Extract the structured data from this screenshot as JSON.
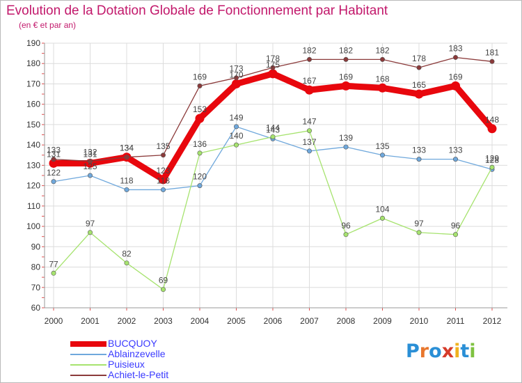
{
  "title": "Evolution de la Dotation Globale de Fonctionnement par Habitant",
  "subtitle": "(en € et par an)",
  "logo": {
    "text": "Proxiti",
    "letters": [
      "P",
      "r",
      "o",
      "x",
      "i",
      "t",
      "i"
    ],
    "colors": [
      "#2a8fd6",
      "#e8772e",
      "#2a8fd6",
      "#d63b2a",
      "#f0b21e",
      "#2a8fd6",
      "#7fc241"
    ]
  },
  "chart_data": {
    "type": "line",
    "title": "Evolution de la Dotation Globale de Fonctionnement par Habitant",
    "subtitle": "(en € et par an)",
    "xlabel": "",
    "ylabel": "",
    "x": [
      "2000",
      "2001",
      "2002",
      "2003",
      "2004",
      "2005",
      "2006",
      "2007",
      "2008",
      "2009",
      "2010",
      "2011",
      "2012"
    ],
    "yticks": [
      60,
      70,
      80,
      90,
      100,
      110,
      120,
      130,
      140,
      150,
      160,
      170,
      180,
      190
    ],
    "ylim": [
      60,
      190
    ],
    "grid": true,
    "legend_position": "bottom-left",
    "series": [
      {
        "name": "BUCQUOY",
        "color": "#e8070d",
        "width": "thick",
        "values": [
          131,
          131,
          134,
          123,
          153,
          170,
          175,
          167,
          169,
          168,
          165,
          169,
          148
        ]
      },
      {
        "name": "Ablainzevelle",
        "color": "#6fa8dc",
        "width": "thin",
        "values": [
          122,
          125,
          118,
          118,
          120,
          149,
          143,
          137,
          139,
          135,
          133,
          133,
          128
        ]
      },
      {
        "name": "Puisieux",
        "color": "#a6e36e",
        "width": "thin",
        "values": [
          77,
          97,
          82,
          69,
          136,
          140,
          144,
          147,
          96,
          104,
          97,
          96,
          129
        ]
      },
      {
        "name": "Achiet-le-Petit",
        "color": "#8b3a3a",
        "width": "thin",
        "values": [
          133,
          132,
          134,
          135,
          169,
          173,
          178,
          182,
          182,
          182,
          178,
          183,
          181
        ]
      }
    ]
  }
}
